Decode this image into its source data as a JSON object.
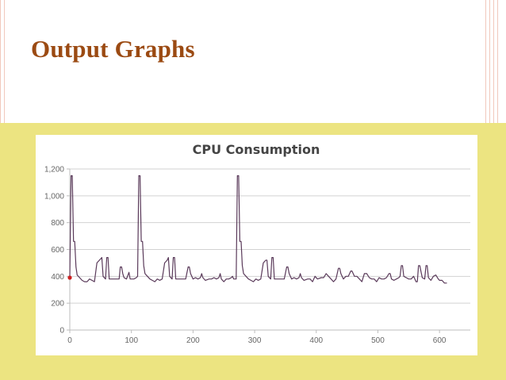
{
  "slide": {
    "title": "Output Graphs",
    "colors": {
      "title": "#9b4a12",
      "band": "#ece481",
      "line": "#5a3a5a",
      "marker": "#cc2020"
    }
  },
  "chart_data": {
    "type": "line",
    "title": "CPU Consumption",
    "xlabel": "",
    "ylabel": "",
    "xlim": [
      0,
      650
    ],
    "ylim": [
      0,
      1200
    ],
    "x_ticks": [
      0,
      100,
      200,
      300,
      400,
      500,
      600
    ],
    "y_ticks": [
      0,
      200,
      400,
      600,
      800,
      1000,
      1200
    ],
    "y_tick_labels": [
      "0",
      "200",
      "400",
      "600",
      "800",
      "1,000",
      "1,200"
    ],
    "grid": true,
    "legend": "none",
    "series": [
      {
        "points": [
          [
            0,
            390
          ],
          [
            2,
            1150
          ],
          [
            4,
            1150
          ],
          [
            6,
            660
          ],
          [
            8,
            660
          ],
          [
            10,
            470
          ],
          [
            12,
            410
          ],
          [
            16,
            390
          ],
          [
            20,
            370
          ],
          [
            24,
            360
          ],
          [
            28,
            360
          ],
          [
            32,
            380
          ],
          [
            36,
            370
          ],
          [
            40,
            360
          ],
          [
            44,
            500
          ],
          [
            48,
            520
          ],
          [
            52,
            540
          ],
          [
            54,
            400
          ],
          [
            58,
            380
          ],
          [
            60,
            540
          ],
          [
            62,
            540
          ],
          [
            64,
            380
          ],
          [
            68,
            380
          ],
          [
            72,
            380
          ],
          [
            76,
            380
          ],
          [
            80,
            380
          ],
          [
            82,
            470
          ],
          [
            84,
            470
          ],
          [
            86,
            420
          ],
          [
            88,
            390
          ],
          [
            92,
            380
          ],
          [
            96,
            430
          ],
          [
            98,
            380
          ],
          [
            104,
            380
          ],
          [
            108,
            390
          ],
          [
            110,
            400
          ],
          [
            112,
            1150
          ],
          [
            114,
            1150
          ],
          [
            116,
            660
          ],
          [
            118,
            660
          ],
          [
            120,
            480
          ],
          [
            122,
            420
          ],
          [
            126,
            400
          ],
          [
            130,
            380
          ],
          [
            134,
            370
          ],
          [
            138,
            360
          ],
          [
            142,
            380
          ],
          [
            146,
            370
          ],
          [
            150,
            380
          ],
          [
            154,
            500
          ],
          [
            158,
            520
          ],
          [
            160,
            540
          ],
          [
            162,
            400
          ],
          [
            166,
            380
          ],
          [
            168,
            540
          ],
          [
            170,
            540
          ],
          [
            172,
            380
          ],
          [
            176,
            380
          ],
          [
            180,
            380
          ],
          [
            184,
            380
          ],
          [
            188,
            380
          ],
          [
            192,
            470
          ],
          [
            194,
            470
          ],
          [
            196,
            420
          ],
          [
            200,
            380
          ],
          [
            204,
            390
          ],
          [
            208,
            380
          ],
          [
            212,
            390
          ],
          [
            214,
            420
          ],
          [
            216,
            390
          ],
          [
            220,
            370
          ],
          [
            226,
            380
          ],
          [
            230,
            380
          ],
          [
            234,
            390
          ],
          [
            238,
            380
          ],
          [
            242,
            390
          ],
          [
            244,
            420
          ],
          [
            246,
            380
          ],
          [
            250,
            360
          ],
          [
            254,
            380
          ],
          [
            258,
            380
          ],
          [
            262,
            390
          ],
          [
            264,
            400
          ],
          [
            266,
            380
          ],
          [
            270,
            380
          ],
          [
            272,
            1150
          ],
          [
            274,
            1150
          ],
          [
            276,
            660
          ],
          [
            278,
            660
          ],
          [
            280,
            480
          ],
          [
            282,
            420
          ],
          [
            286,
            400
          ],
          [
            290,
            380
          ],
          [
            294,
            370
          ],
          [
            298,
            360
          ],
          [
            302,
            380
          ],
          [
            306,
            370
          ],
          [
            310,
            380
          ],
          [
            314,
            500
          ],
          [
            318,
            520
          ],
          [
            320,
            520
          ],
          [
            322,
            400
          ],
          [
            326,
            380
          ],
          [
            328,
            540
          ],
          [
            330,
            540
          ],
          [
            332,
            380
          ],
          [
            336,
            380
          ],
          [
            340,
            380
          ],
          [
            344,
            380
          ],
          [
            348,
            380
          ],
          [
            352,
            470
          ],
          [
            354,
            470
          ],
          [
            356,
            420
          ],
          [
            360,
            380
          ],
          [
            364,
            390
          ],
          [
            368,
            380
          ],
          [
            372,
            390
          ],
          [
            374,
            420
          ],
          [
            376,
            390
          ],
          [
            380,
            370
          ],
          [
            386,
            380
          ],
          [
            390,
            380
          ],
          [
            394,
            360
          ],
          [
            398,
            400
          ],
          [
            402,
            380
          ],
          [
            408,
            390
          ],
          [
            412,
            390
          ],
          [
            416,
            420
          ],
          [
            420,
            400
          ],
          [
            424,
            380
          ],
          [
            428,
            360
          ],
          [
            432,
            380
          ],
          [
            436,
            460
          ],
          [
            438,
            460
          ],
          [
            440,
            420
          ],
          [
            444,
            380
          ],
          [
            448,
            400
          ],
          [
            452,
            400
          ],
          [
            456,
            440
          ],
          [
            458,
            440
          ],
          [
            462,
            400
          ],
          [
            466,
            400
          ],
          [
            470,
            380
          ],
          [
            474,
            360
          ],
          [
            478,
            420
          ],
          [
            482,
            420
          ],
          [
            486,
            390
          ],
          [
            490,
            380
          ],
          [
            494,
            380
          ],
          [
            498,
            360
          ],
          [
            502,
            390
          ],
          [
            506,
            380
          ],
          [
            510,
            380
          ],
          [
            514,
            390
          ],
          [
            518,
            420
          ],
          [
            520,
            420
          ],
          [
            522,
            380
          ],
          [
            526,
            370
          ],
          [
            530,
            380
          ],
          [
            534,
            390
          ],
          [
            536,
            400
          ],
          [
            538,
            480
          ],
          [
            540,
            480
          ],
          [
            542,
            400
          ],
          [
            546,
            390
          ],
          [
            550,
            380
          ],
          [
            554,
            380
          ],
          [
            558,
            400
          ],
          [
            562,
            360
          ],
          [
            564,
            360
          ],
          [
            566,
            480
          ],
          [
            568,
            480
          ],
          [
            572,
            390
          ],
          [
            576,
            380
          ],
          [
            578,
            480
          ],
          [
            580,
            480
          ],
          [
            582,
            390
          ],
          [
            586,
            370
          ],
          [
            590,
            400
          ],
          [
            594,
            410
          ],
          [
            598,
            380
          ],
          [
            600,
            370
          ],
          [
            604,
            370
          ],
          [
            608,
            350
          ],
          [
            612,
            350
          ]
        ],
        "color": "#5a3a5a"
      }
    ]
  }
}
